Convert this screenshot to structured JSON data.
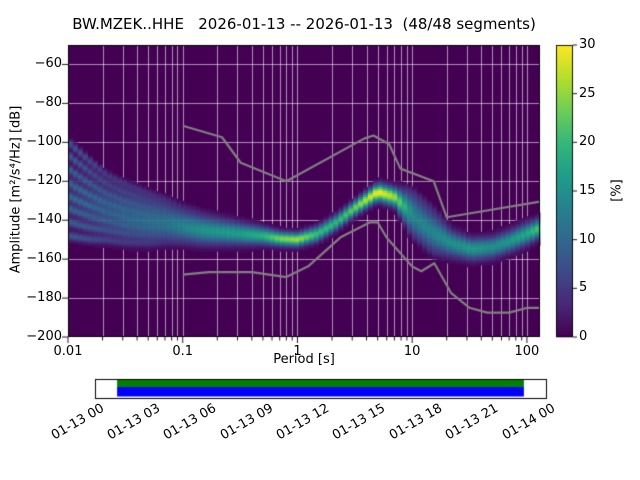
{
  "figure": {
    "background": "#ffffff"
  },
  "chart_data": {
    "type": "heatmap",
    "title": "BW.MZEK..HHE   2026-01-13 -- 2026-01-13  (48/48 segments)",
    "xlabel": "Period [s]",
    "ylabel": "Amplitude [m²/s⁴/Hz] [dB]",
    "xscale": "log",
    "xlim": [
      0.01,
      130
    ],
    "ylim": [
      -200,
      -50
    ],
    "grid": true,
    "colormap": "viridis",
    "background_color_at_zero": "#440154",
    "xticks": {
      "values": [
        0.01,
        0.1,
        1,
        10,
        100
      ],
      "labels": [
        "0.01",
        "0.1",
        "1",
        "10",
        "100"
      ]
    },
    "yticks": {
      "values": [
        -60,
        -80,
        -100,
        -120,
        -140,
        -160,
        -180,
        -200
      ],
      "labels": [
        "−60",
        "−80",
        "−100",
        "−120",
        "−140",
        "−160",
        "−180",
        "−200"
      ]
    },
    "colorbar": {
      "label": "[%]",
      "min": 0,
      "max": 30,
      "ticks": [
        0,
        5,
        10,
        15,
        20,
        25,
        30
      ],
      "tick_labels": [
        "0",
        "5",
        "10",
        "15",
        "20",
        "25",
        "30"
      ]
    },
    "ppsd_distribution": {
      "periods_s": [
        0.01,
        0.015,
        0.022,
        0.033,
        0.05,
        0.07,
        0.1,
        0.15,
        0.22,
        0.33,
        0.5,
        0.7,
        1.0,
        1.5,
        2.2,
        3.3,
        5.0,
        7.0,
        10,
        15,
        22,
        33,
        50,
        70,
        100,
        130
      ],
      "mode_db": [
        -126,
        -131,
        -135,
        -138,
        -140,
        -141,
        -143,
        -145,
        -146,
        -147,
        -148,
        -149.5,
        -150,
        -147,
        -141,
        -133,
        -125.5,
        -128,
        -137,
        -146,
        -152,
        -155,
        -154,
        -151,
        -147,
        -144
      ],
      "peak_probability_percent": [
        6,
        7,
        8,
        9,
        10,
        11,
        13,
        15,
        16,
        17,
        19,
        24,
        26,
        20,
        20,
        24,
        30,
        26,
        14,
        13,
        15,
        17,
        15,
        16,
        18,
        22
      ],
      "spread_db": [
        13,
        11,
        9,
        8,
        7,
        6,
        5,
        4.5,
        4,
        3.5,
        2.8,
        2.3,
        2.2,
        2.5,
        2.5,
        2.5,
        2.8,
        3,
        6,
        6,
        4,
        3.5,
        3.5,
        3.5,
        3.5,
        3
      ]
    },
    "noise_models": {
      "color": "#808080",
      "high_noise_model": {
        "periods_s": [
          0.1,
          0.22,
          0.32,
          0.8,
          3.8,
          4.6,
          6.3,
          7.9,
          15.4,
          20,
          130
        ],
        "db": [
          -91.5,
          -97.4,
          -110.5,
          -120.0,
          -98.1,
          -96.5,
          -101.0,
          -113.5,
          -120.0,
          -138.5,
          -130.4
        ]
      },
      "low_noise_model": {
        "periods_s": [
          0.1,
          0.17,
          0.4,
          0.8,
          1.24,
          2.4,
          4.3,
          5.0,
          6.0,
          10.0,
          12.0,
          15.6,
          21.9,
          31.6,
          45.0,
          70.0,
          101.0,
          130.0
        ],
        "db": [
          -168.0,
          -166.7,
          -166.7,
          -169.2,
          -163.7,
          -148.6,
          -141.1,
          -141.1,
          -149.0,
          -163.8,
          -166.2,
          -162.1,
          -177.5,
          -185.0,
          -187.5,
          -187.5,
          -185.0,
          -185.0
        ]
      }
    }
  },
  "timeline": {
    "tick_labels": [
      "01-13 00",
      "01-13 03",
      "01-13 06",
      "01-13 09",
      "01-13 12",
      "01-13 15",
      "01-13 18",
      "01-13 21",
      "01-14 00"
    ],
    "data_bar_color_top": "#008000",
    "data_bar_color_bottom": "#0000ff",
    "coverage": [
      0.049,
      0.951
    ]
  }
}
